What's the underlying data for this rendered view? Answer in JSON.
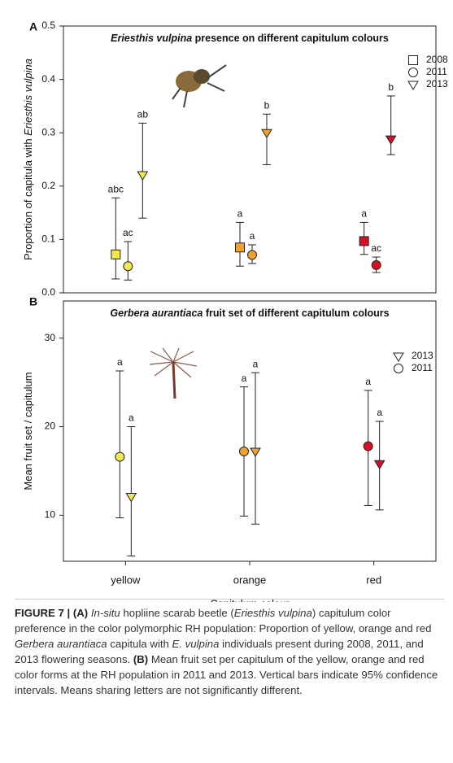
{
  "chart_data": [
    {
      "type": "scatter",
      "panel_label": "A",
      "title": [
        "Eriesthis vulpina",
        " presence on different capitulum colours"
      ],
      "y_label": [
        "Proportion of capitula with ",
        "Eriesthis vulpina"
      ],
      "categories": [
        "yellow",
        "orange",
        "red"
      ],
      "category_colors": [
        "#f3e84a",
        "#f0a22e",
        "#d31228"
      ],
      "ylim": [
        0,
        0.5
      ],
      "yticks": [
        {
          "value": 0,
          "label": "0.0"
        },
        0.1,
        0.2,
        0.3,
        0.4,
        0.5
      ],
      "series": [
        {
          "name": "2008",
          "marker": "square",
          "values": [
            0.072,
            0.085,
            0.097
          ],
          "lower": [
            0.026,
            0.05,
            0.072
          ],
          "upper": [
            0.178,
            0.132,
            0.132
          ],
          "letters": [
            "abc",
            "a",
            "a"
          ]
        },
        {
          "name": "2011",
          "marker": "circle",
          "values": [
            0.05,
            0.071,
            0.052
          ],
          "lower": [
            0.024,
            0.055,
            0.038
          ],
          "upper": [
            0.096,
            0.09,
            0.067
          ],
          "letters": [
            "ac",
            "a",
            "ac"
          ]
        },
        {
          "name": "2013",
          "marker": "triangle",
          "values": [
            0.221,
            0.3,
            0.288
          ],
          "lower": [
            0.14,
            0.24,
            0.259
          ],
          "upper": [
            0.318,
            0.335,
            0.369
          ],
          "letters": [
            "ab",
            "b",
            "b"
          ]
        }
      ]
    },
    {
      "type": "scatter",
      "panel_label": "B",
      "title": [
        "Gerbera aurantiaca",
        " fruit set of different capitulum colours"
      ],
      "y_label": [
        "Mean fruit set / capitulum"
      ],
      "x_label": "Capitulum colour",
      "categories": [
        "yellow",
        "orange",
        "red"
      ],
      "category_colors": [
        "#f3e84a",
        "#f0a22e",
        "#d31228"
      ],
      "ylim": [
        4.8,
        34.2
      ],
      "yticks": [
        10,
        20,
        30
      ],
      "series": [
        {
          "name": "2013",
          "marker": "triangle",
          "values": [
            12.1,
            17.2,
            15.8
          ],
          "lower": [
            5.4,
            9.0,
            10.6
          ],
          "upper": [
            20.0,
            26.1,
            20.6
          ],
          "letters": [
            "a",
            "a",
            "a"
          ]
        },
        {
          "name": "2011",
          "marker": "circle",
          "values": [
            16.6,
            17.2,
            17.8
          ],
          "lower": [
            9.7,
            9.9,
            11.1
          ],
          "upper": [
            26.3,
            24.5,
            24.1
          ],
          "letters": [
            "a",
            "a",
            "a"
          ]
        }
      ]
    }
  ],
  "caption": [
    "FIGURE 7 | (A)",
    " ",
    "In-situ",
    " hopliine scarab beetle (",
    "Eriesthis vulpina",
    ") capitulum color preference in the color polymorphic RH population: Proportion of yellow, orange and red ",
    "Gerbera aurantiaca",
    " capitula with ",
    "E. vulpina",
    " individuals present during 2008, 2011, and 2013 flowering seasons. ",
    "(B)",
    " Mean fruit set per capitulum of the yellow, orange and red color forms at the RH population in 2011 and 2013. Vertical bars indicate 95% confidence intervals. Means sharing letters are not significantly different."
  ]
}
